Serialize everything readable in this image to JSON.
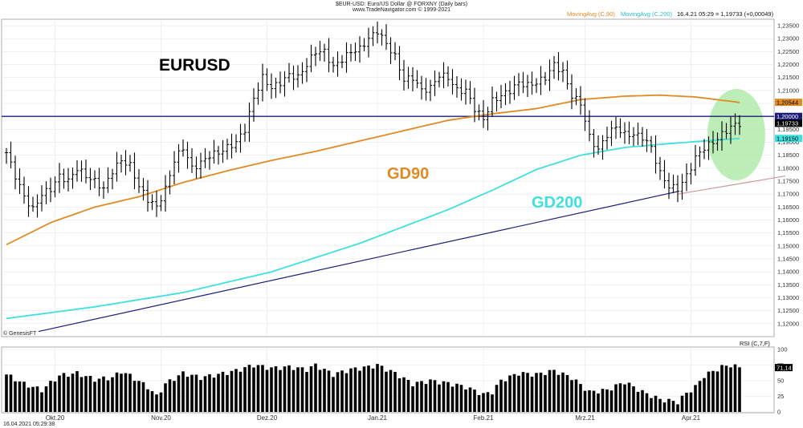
{
  "header": {
    "title": "$EUR-USD: Euro/US Dollar @ FORXNY  (Daily bars)",
    "copyright": "www.TradeNavigator.com © 1999-2021"
  },
  "legend": {
    "ma90_label": "MovingAvg (C,90)",
    "ma200_label": "MovingAvg (C,200)",
    "quote": "16.4.21 05:29 = 1,19733 (+0,00049)"
  },
  "annotations": {
    "symbol": "EURUSD",
    "gd90": "GD90",
    "gd200": "GD200",
    "genesis": "© GenesisFT"
  },
  "footer": {
    "timestamp": "16.04.2021 05:29:38"
  },
  "colors": {
    "ma90": "#e08a24",
    "ma200": "#3ee0e0",
    "support": "#1c1c7a",
    "resistance": "#1c1c7a",
    "trend2": "#c89a9a",
    "ellipse": "#a8e8a0",
    "bars": "#000000",
    "price_tag": "#000000",
    "ma90_tag": "#e08a24",
    "ma200_tag": "#3ee0e0",
    "level_tag": "#1c1c7a"
  },
  "chart_data": [
    {
      "type": "ohlc",
      "ylim": [
        1.115,
        1.2375
      ],
      "yticks": [
        "1,12000",
        "1,12500",
        "1,13000",
        "1,13500",
        "1,14000",
        "1,14500",
        "1,15000",
        "1,15500",
        "1,16000",
        "1,16500",
        "1,17000",
        "1,17500",
        "1,18000",
        "1,18500",
        "1,19000",
        "1,19500",
        "1,20000",
        "1,20500",
        "1,21000",
        "1,21500",
        "1,22000",
        "1,22500",
        "1,23000",
        "1,23500"
      ],
      "xticks": [
        "Okt.20",
        "Nov.20",
        "Dez.20",
        "Jan.21",
        "Feb.21",
        "Mrz.21",
        "Apr.21"
      ],
      "price_levels": {
        "last": {
          "value": 1.19733,
          "label": "1,19733"
        },
        "ma90": {
          "value": 1.20544,
          "label": "1,20544"
        },
        "ma200": {
          "value": 1.1915,
          "label": "1,19150"
        },
        "resistance": {
          "value": 1.2,
          "label": "1,20000"
        }
      },
      "close_anchors": [
        [
          0,
          1.186
        ],
        [
          2,
          1.177
        ],
        [
          4,
          1.169
        ],
        [
          6,
          1.164
        ],
        [
          8,
          1.17
        ],
        [
          10,
          1.172
        ],
        [
          12,
          1.177
        ],
        [
          14,
          1.175
        ],
        [
          16,
          1.18
        ],
        [
          18,
          1.177
        ],
        [
          20,
          1.175
        ],
        [
          22,
          1.172
        ],
        [
          24,
          1.179
        ],
        [
          26,
          1.183
        ],
        [
          28,
          1.181
        ],
        [
          30,
          1.173
        ],
        [
          32,
          1.168
        ],
        [
          34,
          1.165
        ],
        [
          36,
          1.172
        ],
        [
          38,
          1.183
        ],
        [
          40,
          1.188
        ],
        [
          42,
          1.18
        ],
        [
          44,
          1.182
        ],
        [
          46,
          1.185
        ],
        [
          48,
          1.186
        ],
        [
          50,
          1.188
        ],
        [
          52,
          1.19
        ],
        [
          54,
          1.195
        ],
        [
          56,
          1.207
        ],
        [
          58,
          1.215
        ],
        [
          60,
          1.211
        ],
        [
          62,
          1.213
        ],
        [
          64,
          1.216
        ],
        [
          66,
          1.215
        ],
        [
          68,
          1.22
        ],
        [
          70,
          1.225
        ],
        [
          72,
          1.225
        ],
        [
          74,
          1.219
        ],
        [
          76,
          1.222
        ],
        [
          78,
          1.225
        ],
        [
          80,
          1.226
        ],
        [
          82,
          1.23
        ],
        [
          84,
          1.233
        ],
        [
          86,
          1.228
        ],
        [
          88,
          1.223
        ],
        [
          90,
          1.214
        ],
        [
          92,
          1.215
        ],
        [
          94,
          1.21
        ],
        [
          96,
          1.211
        ],
        [
          98,
          1.216
        ],
        [
          100,
          1.215
        ],
        [
          102,
          1.21
        ],
        [
          104,
          1.21
        ],
        [
          106,
          1.203
        ],
        [
          108,
          1.199
        ],
        [
          110,
          1.206
        ],
        [
          112,
          1.208
        ],
        [
          114,
          1.21
        ],
        [
          116,
          1.213
        ],
        [
          118,
          1.212
        ],
        [
          120,
          1.213
        ],
        [
          122,
          1.215
        ],
        [
          124,
          1.22
        ],
        [
          126,
          1.217
        ],
        [
          128,
          1.208
        ],
        [
          130,
          1.205
        ],
        [
          132,
          1.192
        ],
        [
          134,
          1.187
        ],
        [
          136,
          1.193
        ],
        [
          138,
          1.196
        ],
        [
          140,
          1.193
        ],
        [
          142,
          1.193
        ],
        [
          144,
          1.192
        ],
        [
          146,
          1.188
        ],
        [
          148,
          1.178
        ],
        [
          150,
          1.173
        ],
        [
          152,
          1.172
        ],
        [
          154,
          1.177
        ],
        [
          156,
          1.184
        ],
        [
          158,
          1.188
        ],
        [
          160,
          1.19
        ],
        [
          162,
          1.193
        ],
        [
          164,
          1.196
        ],
        [
          166,
          1.1973
        ]
      ],
      "ma90_anchors": [
        [
          0,
          1.1505
        ],
        [
          10,
          1.159
        ],
        [
          20,
          1.165
        ],
        [
          30,
          1.169
        ],
        [
          40,
          1.1745
        ],
        [
          50,
          1.179
        ],
        [
          60,
          1.183
        ],
        [
          70,
          1.1865
        ],
        [
          80,
          1.1905
        ],
        [
          90,
          1.1945
        ],
        [
          100,
          1.1985
        ],
        [
          110,
          1.201
        ],
        [
          120,
          1.203
        ],
        [
          130,
          1.2065
        ],
        [
          140,
          1.2078
        ],
        [
          148,
          1.2082
        ],
        [
          156,
          1.2075
        ],
        [
          166,
          1.2054
        ]
      ],
      "ma200_anchors": [
        [
          0,
          1.122
        ],
        [
          20,
          1.1265
        ],
        [
          40,
          1.132
        ],
        [
          60,
          1.14
        ],
        [
          80,
          1.151
        ],
        [
          100,
          1.164
        ],
        [
          110,
          1.1715
        ],
        [
          120,
          1.1795
        ],
        [
          130,
          1.185
        ],
        [
          140,
          1.188
        ],
        [
          150,
          1.1895
        ],
        [
          166,
          1.1915
        ]
      ],
      "support_line": [
        [
          0,
          1.117
        ],
        [
          152,
          1.171
        ]
      ],
      "trend2_line": [
        [
          152,
          1.17
        ],
        [
          176,
          1.177
        ]
      ]
    },
    {
      "type": "bar",
      "title": "RSI (C,7,F)",
      "ylim": [
        0,
        100
      ],
      "yticks": [
        "0",
        "25",
        "50",
        "75",
        "100"
      ],
      "last_label": "71,14",
      "rsi_anchors": [
        [
          0,
          60
        ],
        [
          4,
          45
        ],
        [
          8,
          35
        ],
        [
          12,
          58
        ],
        [
          16,
          62
        ],
        [
          20,
          52
        ],
        [
          24,
          55
        ],
        [
          26,
          65
        ],
        [
          28,
          58
        ],
        [
          32,
          40
        ],
        [
          34,
          25
        ],
        [
          36,
          45
        ],
        [
          40,
          62
        ],
        [
          44,
          55
        ],
        [
          48,
          60
        ],
        [
          52,
          66
        ],
        [
          56,
          75
        ],
        [
          60,
          70
        ],
        [
          64,
          72
        ],
        [
          68,
          68
        ],
        [
          70,
          75
        ],
        [
          74,
          60
        ],
        [
          78,
          68
        ],
        [
          82,
          72
        ],
        [
          84,
          75
        ],
        [
          88,
          62
        ],
        [
          92,
          45
        ],
        [
          96,
          50
        ],
        [
          100,
          46
        ],
        [
          104,
          40
        ],
        [
          108,
          28
        ],
        [
          110,
          32
        ],
        [
          112,
          50
        ],
        [
          116,
          62
        ],
        [
          120,
          60
        ],
        [
          124,
          66
        ],
        [
          128,
          55
        ],
        [
          132,
          32
        ],
        [
          136,
          35
        ],
        [
          140,
          48
        ],
        [
          144,
          32
        ],
        [
          148,
          20
        ],
        [
          152,
          16
        ],
        [
          154,
          30
        ],
        [
          156,
          40
        ],
        [
          158,
          58
        ],
        [
          160,
          65
        ],
        [
          162,
          72
        ],
        [
          164,
          75
        ],
        [
          166,
          71
        ]
      ]
    }
  ]
}
